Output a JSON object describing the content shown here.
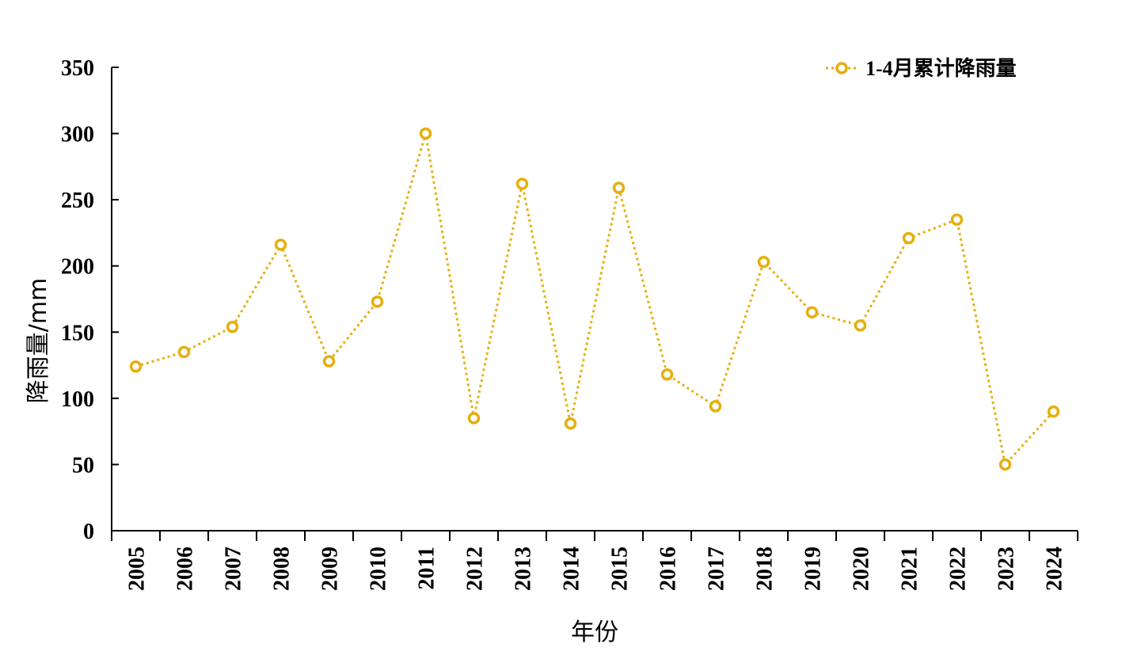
{
  "chart_data": {
    "type": "line",
    "x": [
      "2005",
      "2006",
      "2007",
      "2008",
      "2009",
      "2010",
      "2011",
      "2012",
      "2013",
      "2014",
      "2015",
      "2016",
      "2017",
      "2018",
      "2019",
      "2020",
      "2021",
      "2022",
      "2023",
      "2024"
    ],
    "series": [
      {
        "name": "1-4月累计降雨量",
        "values": [
          124,
          135,
          154,
          216,
          128,
          173,
          300,
          85,
          262,
          81,
          259,
          118,
          94,
          203,
          165,
          155,
          221,
          235,
          50,
          90
        ],
        "color": "#E6AF0C",
        "line_style": "dotted",
        "marker": "hollow-circle"
      }
    ],
    "xlabel": "年份",
    "ylabel": "降雨量/mm",
    "ylim": [
      0,
      350
    ],
    "yticks": [
      0,
      50,
      100,
      150,
      200,
      250,
      300,
      350
    ],
    "grid": false,
    "legend_position": "top-right"
  }
}
